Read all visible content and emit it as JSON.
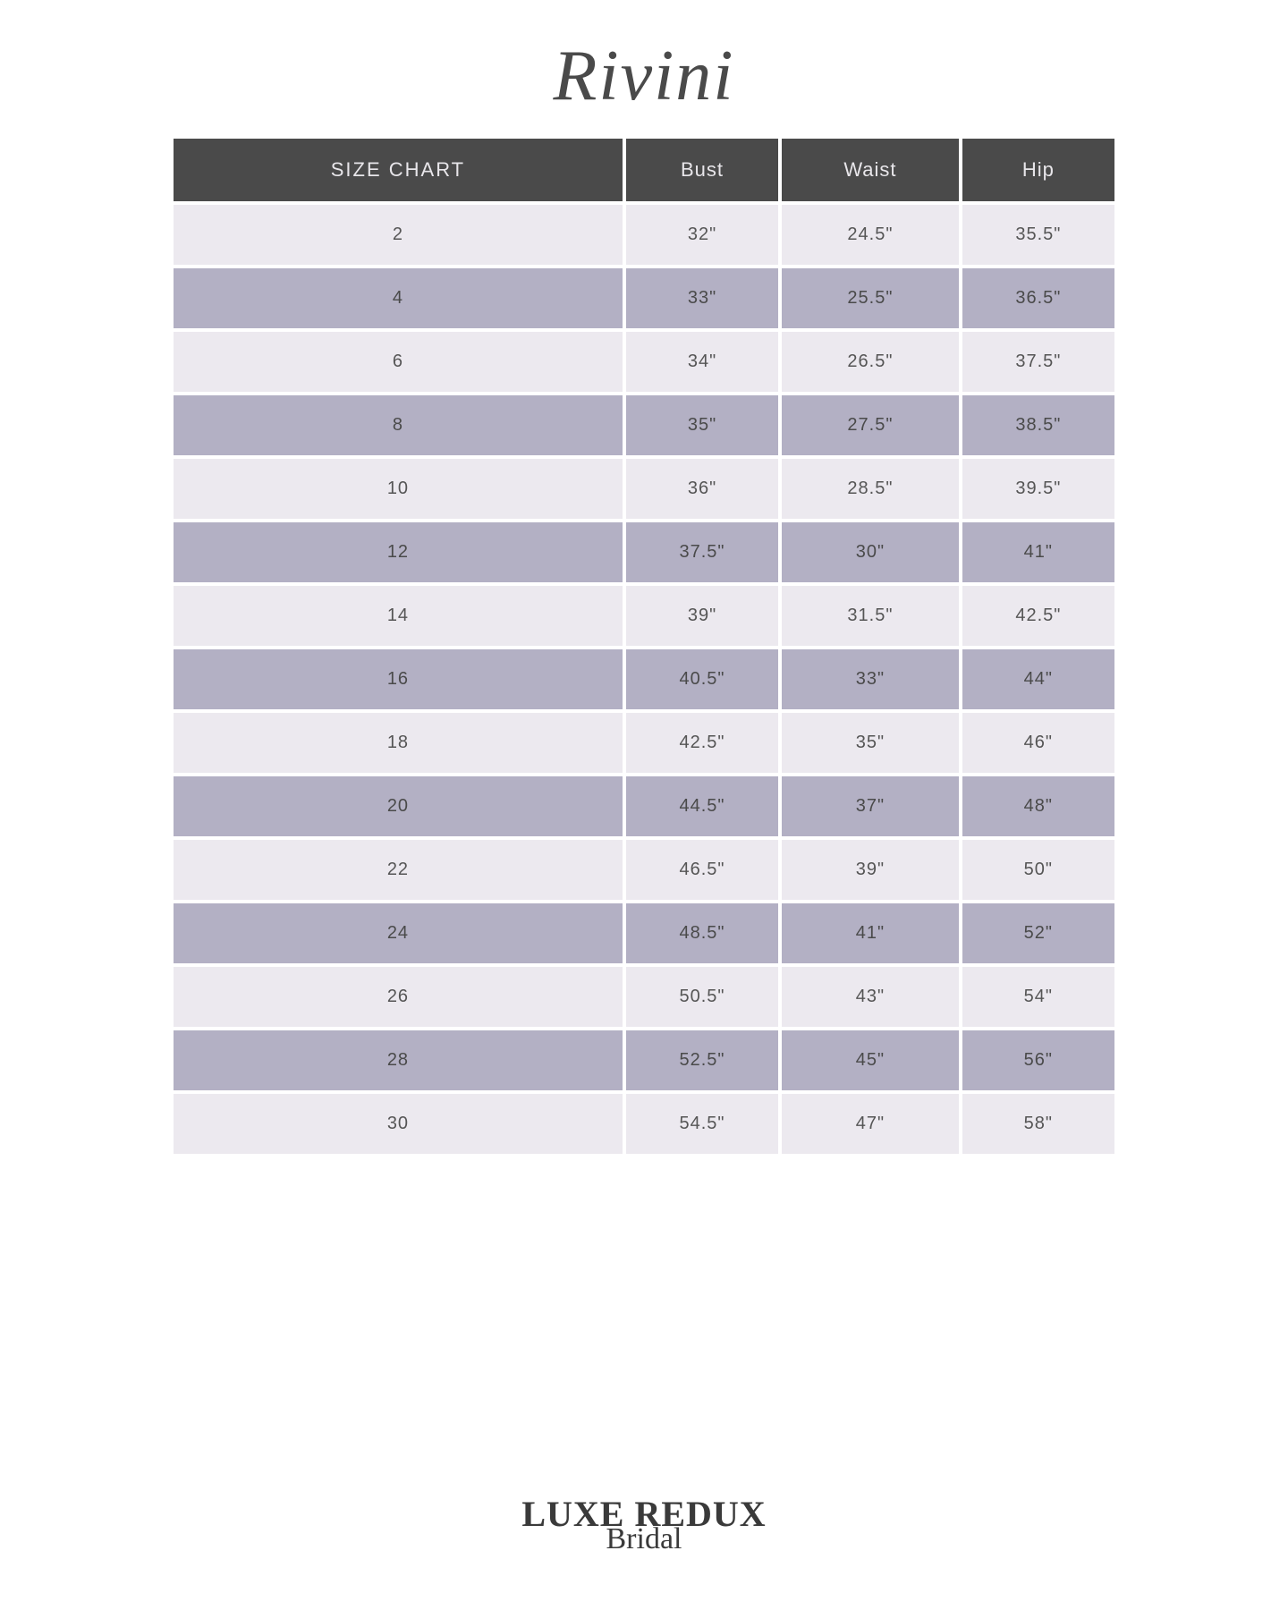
{
  "brand": {
    "name": "Rivini"
  },
  "footer": {
    "line1": "LUXE REDUX",
    "line2": "Bridal"
  },
  "table": {
    "columns": [
      "SIZE CHART",
      "Bust",
      "Waist",
      "Hip"
    ],
    "column_widths": [
      "25%",
      "25%",
      "25%",
      "25%"
    ],
    "header_bg": "#4a4a4a",
    "header_text_color": "#e8e6ea",
    "row_odd_bg": "#ece9ef",
    "row_even_bg": "#b3b0c4",
    "cell_text_color": "#555555",
    "header_fontsize": 22,
    "cell_fontsize": 20,
    "rows": [
      [
        "2",
        "32\"",
        "24.5\"",
        "35.5\""
      ],
      [
        "4",
        "33\"",
        "25.5\"",
        "36.5\""
      ],
      [
        "6",
        "34\"",
        "26.5\"",
        "37.5\""
      ],
      [
        "8",
        "35\"",
        "27.5\"",
        "38.5\""
      ],
      [
        "10",
        "36\"",
        "28.5\"",
        "39.5\""
      ],
      [
        "12",
        "37.5\"",
        "30\"",
        "41\""
      ],
      [
        "14",
        "39\"",
        "31.5\"",
        "42.5\""
      ],
      [
        "16",
        "40.5\"",
        "33\"",
        "44\""
      ],
      [
        "18",
        "42.5\"",
        "35\"",
        "46\""
      ],
      [
        "20",
        "44.5\"",
        "37\"",
        "48\""
      ],
      [
        "22",
        "46.5\"",
        "39\"",
        "50\""
      ],
      [
        "24",
        "48.5\"",
        "41\"",
        "52\""
      ],
      [
        "26",
        "50.5\"",
        "43\"",
        "54\""
      ],
      [
        "28",
        "52.5\"",
        "45\"",
        "56\""
      ],
      [
        "30",
        "54.5\"",
        "47\"",
        "58\""
      ]
    ]
  }
}
